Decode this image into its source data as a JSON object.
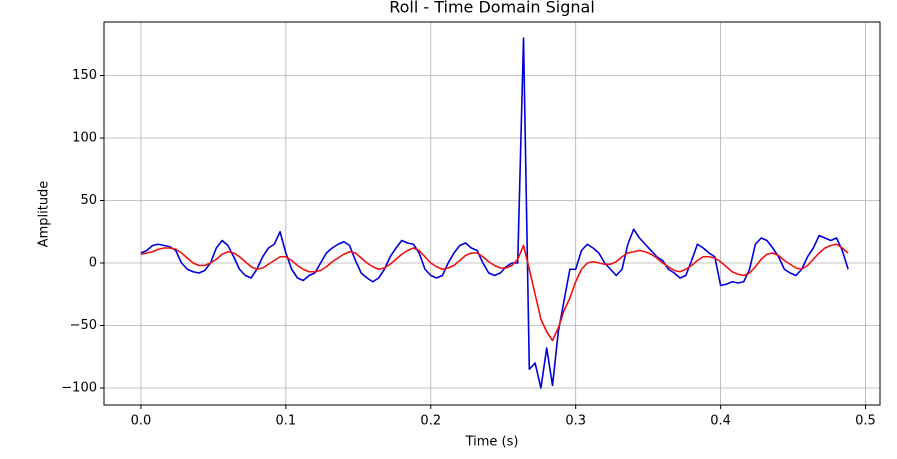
{
  "chart_data": {
    "type": "line",
    "title": "Roll - Time Domain Signal",
    "x_label": "Time (s)",
    "y_label": "Amplitude",
    "xlim": [
      -0.0255,
      0.51
    ],
    "ylim": [
      -113.6,
      192.8
    ],
    "xticks": [
      {
        "value": 0,
        "label": "0.0"
      },
      0.1,
      0.2,
      0.3,
      0.4,
      0.5
    ],
    "yticks": [
      {
        "value": -100,
        "label": "−100"
      },
      {
        "value": -50,
        "label": "−50"
      },
      0,
      50,
      100,
      150
    ],
    "grid": true,
    "x": [
      0,
      0.004,
      0.008,
      0.012,
      0.016,
      0.02,
      0.024,
      0.028,
      0.032,
      0.036,
      0.04,
      0.044,
      0.048,
      0.052,
      0.056,
      0.06,
      0.064,
      0.068,
      0.072,
      0.076,
      0.08,
      0.084,
      0.088,
      0.092,
      0.096,
      0.1,
      0.104,
      0.108,
      0.112,
      0.116,
      0.12,
      0.124,
      0.128,
      0.132,
      0.136,
      0.14,
      0.144,
      0.148,
      0.152,
      0.156,
      0.16,
      0.164,
      0.168,
      0.172,
      0.176,
      0.18,
      0.184,
      0.188,
      0.192,
      0.196,
      0.2,
      0.204,
      0.208,
      0.212,
      0.216,
      0.22,
      0.224,
      0.228,
      0.232,
      0.236,
      0.24,
      0.244,
      0.248,
      0.252,
      0.256,
      0.26,
      0.264,
      0.268,
      0.272,
      0.276,
      0.28,
      0.284,
      0.288,
      0.292,
      0.296,
      0.3,
      0.304,
      0.308,
      0.312,
      0.316,
      0.32,
      0.324,
      0.328,
      0.332,
      0.336,
      0.34,
      0.344,
      0.348,
      0.352,
      0.356,
      0.36,
      0.364,
      0.368,
      0.372,
      0.376,
      0.38,
      0.384,
      0.388,
      0.392,
      0.396,
      0.4,
      0.404,
      0.408,
      0.412,
      0.416,
      0.42,
      0.424,
      0.428,
      0.432,
      0.436,
      0.44,
      0.444,
      0.448,
      0.452,
      0.456,
      0.46,
      0.464,
      0.468,
      0.472,
      0.476,
      0.48,
      0.484,
      0.488
    ],
    "series": [
      {
        "color": "#0000dd",
        "values": [
          8,
          10,
          14,
          15,
          14,
          13,
          10,
          0,
          -5,
          -7,
          -8,
          -6,
          0,
          12,
          18,
          14,
          5,
          -5,
          -10,
          -12,
          -5,
          5,
          12,
          15,
          25,
          8,
          -5,
          -12,
          -14,
          -10,
          -8,
          0,
          8,
          12,
          15,
          17,
          14,
          2,
          -8,
          -12,
          -15,
          -12,
          -5,
          5,
          12,
          18,
          16,
          15,
          8,
          -5,
          -10,
          -12,
          -10,
          0,
          8,
          14,
          16,
          12,
          10,
          0,
          -8,
          -10,
          -8,
          -3,
          0,
          0,
          180,
          -85,
          -80,
          -100,
          -68,
          -98,
          -55,
          -30,
          -5,
          -5,
          10,
          15,
          12,
          8,
          0,
          -5,
          -10,
          -5,
          15,
          27,
          20,
          15,
          10,
          5,
          2,
          -5,
          -8,
          -12,
          -10,
          2,
          15,
          12,
          8,
          5,
          -18,
          -17,
          -15,
          -16,
          -15,
          -5,
          15,
          20,
          18,
          12,
          5,
          -5,
          -8,
          -10,
          -5,
          5,
          12,
          22,
          20,
          18,
          20,
          10,
          -5
        ]
      },
      {
        "color": "#ee1111",
        "values": [
          7,
          8,
          9,
          11,
          12,
          12,
          11,
          8,
          4,
          0,
          -2,
          -2,
          0,
          3,
          7,
          9,
          8,
          5,
          1,
          -3,
          -5,
          -4,
          -1,
          2,
          5,
          5,
          2,
          -2,
          -5,
          -7,
          -7,
          -6,
          -3,
          1,
          4,
          7,
          9,
          8,
          4,
          0,
          -3,
          -5,
          -4,
          -1,
          3,
          7,
          10,
          12,
          10,
          5,
          0,
          -3,
          -5,
          -4,
          -2,
          2,
          6,
          8,
          8,
          5,
          1,
          -2,
          -4,
          -4,
          -2,
          3,
          14,
          -5,
          -25,
          -45,
          -55,
          -62,
          -52,
          -38,
          -28,
          -15,
          -5,
          0,
          1,
          0,
          -1,
          -1,
          1,
          5,
          8,
          9,
          10,
          9,
          7,
          4,
          0,
          -3,
          -6,
          -7,
          -5,
          -2,
          2,
          5,
          5,
          4,
          1,
          -3,
          -7,
          -9,
          -10,
          -8,
          -3,
          3,
          7,
          8,
          6,
          2,
          -1,
          -4,
          -5,
          -2,
          3,
          8,
          12,
          14,
          15,
          12,
          8
        ]
      }
    ]
  }
}
